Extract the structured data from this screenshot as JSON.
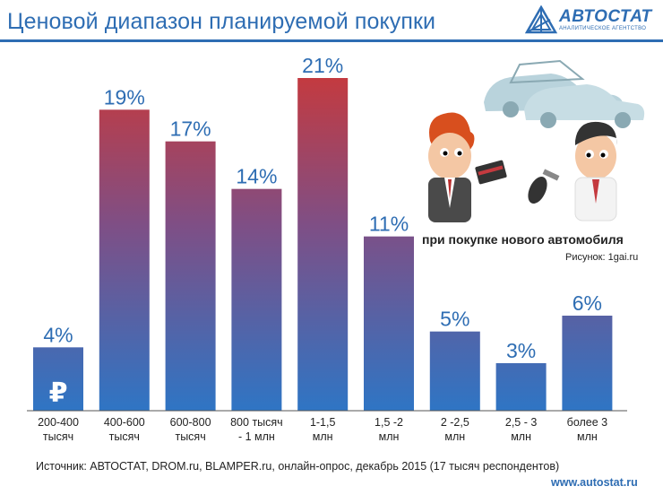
{
  "header": {
    "title": "Ценовой диапазон планируемой покупки"
  },
  "logo": {
    "name": "АВТОСТАТ",
    "tagline": "АНАЛИТИЧЕСКОЕ АГЕНТСТВО",
    "icon": "autostat-logo-icon"
  },
  "illustration": {
    "caption": "при покупке нового автомобиля",
    "credit": "Рисунок: 1gai.ru",
    "icons": [
      "car-icon",
      "buyer-figure",
      "seller-figure",
      "car-key-icon",
      "card-icon"
    ]
  },
  "footer": {
    "source": "Источник: АВТОСТАТ, DROM.ru, BLAMPER.ru, онлайн-опрос, декабрь 2015 (17 тысяч респондентов)",
    "url": "www.autostat.ru"
  },
  "colors": {
    "accent": "#2e6db3",
    "bar_top": "#c43a3f",
    "bar_bottom": "#2f75c4"
  },
  "chart_data": {
    "type": "bar",
    "title": "Ценовой диапазон планируемой покупки",
    "categories": [
      [
        "200-400",
        "тысяч"
      ],
      [
        "400-600",
        "тысяч"
      ],
      [
        "600-800",
        "тысяч"
      ],
      [
        "800 тысяч",
        "- 1 млн"
      ],
      [
        "1-1,5",
        "млн"
      ],
      [
        "1,5 -2",
        "млн"
      ],
      [
        "2 -2,5",
        "млн"
      ],
      [
        "2,5 - 3",
        "млн"
      ],
      [
        "более 3",
        "млн"
      ]
    ],
    "values": [
      4,
      19,
      17,
      14,
      21,
      11,
      5,
      3,
      6
    ],
    "value_labels": [
      "4%",
      "19%",
      "17%",
      "14%",
      "21%",
      "11%",
      "5%",
      "3%",
      "6%"
    ],
    "unit": "%",
    "ylim": [
      0,
      21
    ],
    "grid": false,
    "legend": "none",
    "annotations": [
      {
        "category_index": 0,
        "symbol": "₽",
        "icon": "ruble-icon"
      }
    ]
  }
}
